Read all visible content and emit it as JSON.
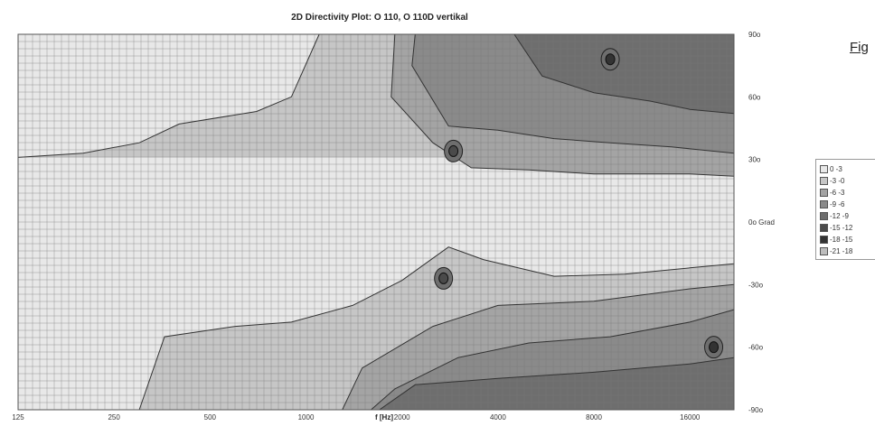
{
  "figure_label": "Fig",
  "chart_data": {
    "type": "heatmap",
    "title": "2D Directivity Plot: O 110, O 110D vertikal",
    "xlabel": "f [Hz]",
    "ylabel": "Grad",
    "x_scale": "log",
    "x_ticks": [
      "125",
      "250",
      "500",
      "1000",
      "2000",
      "4000",
      "8000",
      "16000"
    ],
    "x_tick_values": [
      125,
      250,
      500,
      1000,
      2000,
      4000,
      8000,
      16000
    ],
    "y_ticks": [
      "90o",
      "60o",
      "30o",
      "0o Grad",
      "-30o",
      "-60o",
      "-90o"
    ],
    "y_tick_values": [
      90,
      60,
      30,
      0,
      -30,
      -60,
      -90
    ],
    "xlim": [
      125,
      22000
    ],
    "ylim": [
      -90,
      90
    ],
    "grid": true,
    "legend_position": "right",
    "legend": [
      {
        "label": "0 -3",
        "color": "#e8e8e8"
      },
      {
        "label": "-3 -0",
        "color": "#c6c6c6"
      },
      {
        "label": "-6 -3",
        "color": "#a4a4a4"
      },
      {
        "label": "-9 -6",
        "color": "#8a8a8a"
      },
      {
        "label": "-12 -9",
        "color": "#6e6e6e"
      },
      {
        "label": "-15 -12",
        "color": "#4a4a4a"
      },
      {
        "label": "-18 -15",
        "color": "#333333"
      },
      {
        "label": "-21 -18",
        "color": "#bdbdbd"
      }
    ],
    "contours": {
      "upper": [
        {
          "level": "-3",
          "boundary": [
            [
              1100,
              90
            ],
            [
              900,
              60
            ],
            [
              700,
              53
            ],
            [
              400,
              47
            ],
            [
              300,
              38
            ],
            [
              200,
              33
            ],
            [
              125,
              31
            ]
          ]
        },
        {
          "level": "-6",
          "boundary": [
            [
              1900,
              90
            ],
            [
              1850,
              60
            ],
            [
              2500,
              38
            ],
            [
              3300,
              26
            ],
            [
              5000,
              25
            ],
            [
              8000,
              23
            ],
            [
              16000,
              23
            ],
            [
              22000,
              22
            ]
          ]
        },
        {
          "level": "-9",
          "boundary": [
            [
              2200,
              90
            ],
            [
              2150,
              75
            ],
            [
              2800,
              46
            ],
            [
              4000,
              44
            ],
            [
              6000,
              40
            ],
            [
              9000,
              38
            ],
            [
              14000,
              36
            ],
            [
              22000,
              33
            ]
          ]
        },
        {
          "level": "-12",
          "boundary": [
            [
              4500,
              90
            ],
            [
              5500,
              70
            ],
            [
              8000,
              62
            ],
            [
              12000,
              58
            ],
            [
              16000,
              54
            ],
            [
              22000,
              52
            ]
          ]
        }
      ],
      "lower": [
        {
          "level": "-3",
          "boundary": [
            [
              300,
              -90
            ],
            [
              360,
              -55
            ],
            [
              600,
              -50
            ],
            [
              900,
              -48
            ],
            [
              1400,
              -40
            ],
            [
              2000,
              -28
            ],
            [
              2800,
              -12
            ],
            [
              3600,
              -18
            ],
            [
              6000,
              -26
            ],
            [
              10000,
              -25
            ],
            [
              16000,
              -22
            ],
            [
              22000,
              -20
            ]
          ]
        },
        {
          "level": "-6",
          "boundary": [
            [
              1300,
              -90
            ],
            [
              1500,
              -70
            ],
            [
              2500,
              -50
            ],
            [
              4000,
              -40
            ],
            [
              8000,
              -38
            ],
            [
              16000,
              -32
            ],
            [
              22000,
              -30
            ]
          ]
        },
        {
          "level": "-9",
          "boundary": [
            [
              1600,
              -90
            ],
            [
              1900,
              -80
            ],
            [
              3000,
              -65
            ],
            [
              5000,
              -58
            ],
            [
              9000,
              -55
            ],
            [
              16000,
              -48
            ],
            [
              22000,
              -42
            ]
          ]
        },
        {
          "level": "-12",
          "boundary": [
            [
              1700,
              -90
            ],
            [
              2200,
              -78
            ],
            [
              4000,
              -75
            ],
            [
              8000,
              -72
            ],
            [
              16000,
              -68
            ],
            [
              22000,
              -65
            ]
          ]
        }
      ],
      "spots": [
        {
          "f": 2900,
          "deg": 34,
          "level": "-15"
        },
        {
          "f": 2700,
          "deg": -27,
          "level": "-15"
        },
        {
          "f": 9000,
          "deg": 78,
          "level": "-18"
        },
        {
          "f": 19000,
          "deg": -60,
          "level": "-18"
        }
      ]
    }
  }
}
